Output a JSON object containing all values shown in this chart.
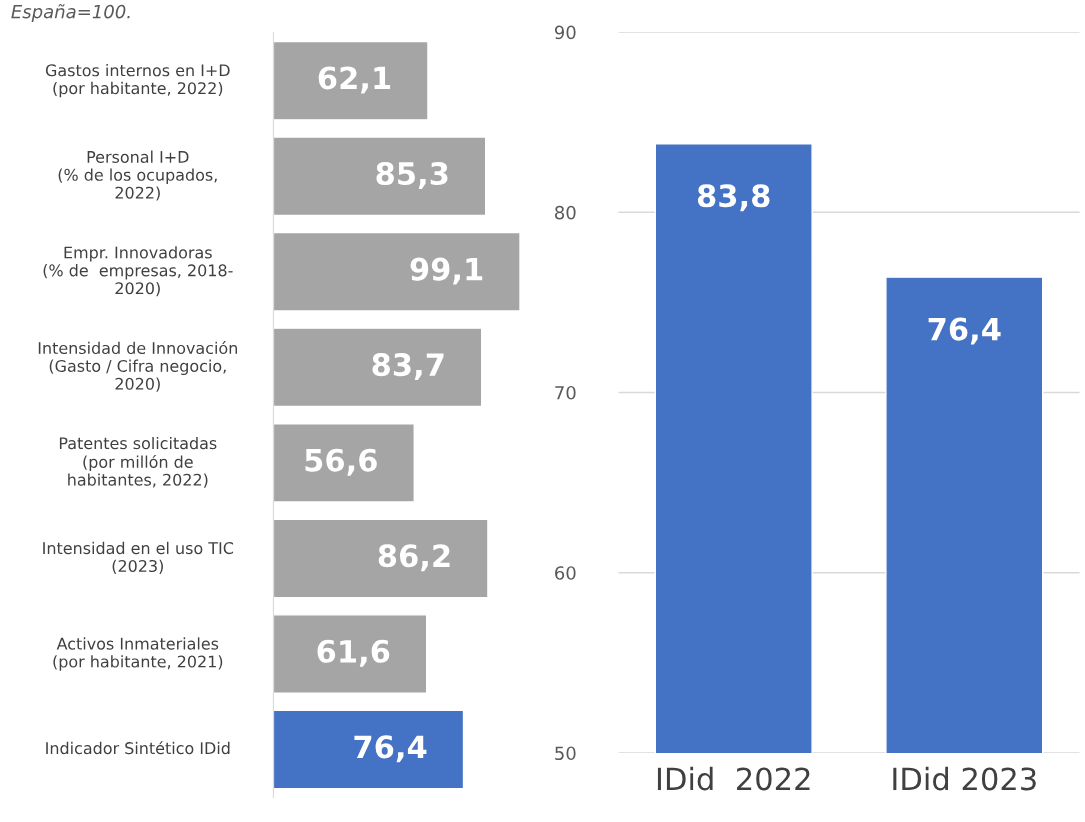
{
  "chart_data": [
    {
      "type": "bar",
      "orientation": "horizontal",
      "title": "España=100.",
      "categories": [
        "Gastos internos en I+D\n(por habitante, 2022)",
        "Personal I+D\n(% de los ocupados,\n2022)",
        "Empr. Innovadoras\n(% de  empresas, 2018-\n2020)",
        "Intensidad de Innovación\n(Gasto / Cifra negocio,\n2020)",
        "Patentes solicitadas\n(por millón de\nhabitantes, 2022)",
        "Intensidad en el uso TIC\n(2023)",
        "Activos Inmateriales\n(por habitante, 2021)",
        "Indicador Sintético IDid"
      ],
      "values": [
        62.1,
        85.3,
        99.1,
        83.7,
        56.6,
        86.2,
        61.6,
        76.4
      ],
      "value_labels": [
        "62,1",
        "85,3",
        "99,1",
        "83,7",
        "56,6",
        "86,2",
        "61,6",
        "76,4"
      ],
      "colors": [
        "#a5a5a5",
        "#a5a5a5",
        "#a5a5a5",
        "#a5a5a5",
        "#a5a5a5",
        "#a5a5a5",
        "#a5a5a5",
        "#4472c4"
      ]
    },
    {
      "type": "bar",
      "categories": [
        "IDid  2022",
        "IDid 2023"
      ],
      "values": [
        83.8,
        76.4
      ],
      "value_labels": [
        "83,8",
        "76,4"
      ],
      "color": "#4472c4",
      "ylim": [
        50,
        90
      ],
      "yticks": [
        50,
        60,
        70,
        80,
        90
      ],
      "grid": "y"
    }
  ]
}
